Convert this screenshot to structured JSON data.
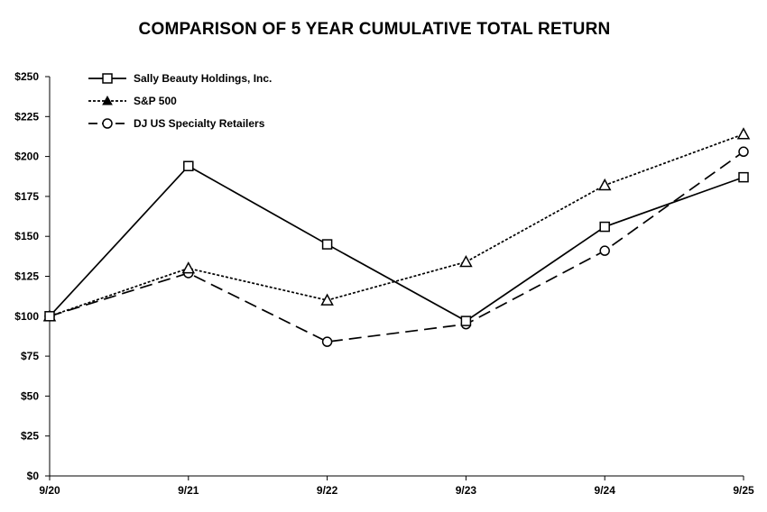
{
  "chart_data": {
    "type": "line",
    "title": "COMPARISON OF 5 YEAR CUMULATIVE TOTAL RETURN",
    "categories": [
      "9/20",
      "9/21",
      "9/22",
      "9/23",
      "9/24",
      "9/25"
    ],
    "ylim": [
      0,
      250
    ],
    "yticks": [
      "$0",
      "$25",
      "$50",
      "$75",
      "$100",
      "$125",
      "$150",
      "$175",
      "$200",
      "$225",
      "$250"
    ],
    "ytick_values": [
      0,
      25,
      50,
      75,
      100,
      125,
      150,
      175,
      200,
      225,
      250
    ],
    "grid": false,
    "legend_position": "top-left",
    "series": [
      {
        "name": "Sally Beauty Holdings, Inc.",
        "values": [
          100,
          194,
          145,
          97,
          156,
          187
        ],
        "line_style": "solid",
        "marker": "square",
        "color": "#000000"
      },
      {
        "name": "S&P 500",
        "values": [
          100,
          130,
          110,
          134,
          182,
          214
        ],
        "line_style": "dotted",
        "marker": "triangle",
        "color": "#000000"
      },
      {
        "name": "DJ US Specialty Retailers",
        "values": [
          100,
          127,
          84,
          95,
          141,
          203
        ],
        "line_style": "dashed",
        "marker": "circle",
        "color": "#000000"
      }
    ]
  }
}
